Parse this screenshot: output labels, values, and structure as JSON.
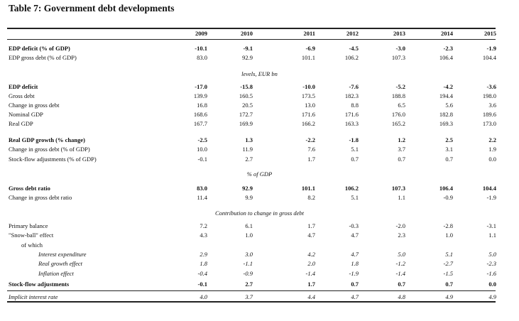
{
  "title": "Table 7: Government debt developments",
  "years": [
    "2009",
    "2010",
    "2011",
    "2012",
    "2013",
    "2014",
    "2015"
  ],
  "sections": {
    "levels": "levels, EUR bn",
    "pct_gdp": "% of GDP",
    "contribution": "Contribution to change in gross debt"
  },
  "rows": [
    {
      "label": "EDP deficit (% of GDP)",
      "values": [
        "-10.1",
        "-9.1",
        "-6.9",
        "-4.5",
        "-3.0",
        "-2.3",
        "-1.9"
      ],
      "style": "bold"
    },
    {
      "label": "EDP gross debt (% of GDP)",
      "values": [
        "83.0",
        "92.9",
        "101.1",
        "106.2",
        "107.3",
        "106.4",
        "104.4"
      ],
      "style": ""
    },
    {
      "label": "EDP deficit",
      "values": [
        "-17.0",
        "-15.8",
        "-10.0",
        "-7.6",
        "-5.2",
        "-4.2",
        "-3.6"
      ],
      "style": "bold"
    },
    {
      "label": "Gross debt",
      "values": [
        "139.9",
        "160.5",
        "173.5",
        "182.3",
        "188.8",
        "194.4",
        "198.0"
      ],
      "style": ""
    },
    {
      "label": "Change in gross debt",
      "values": [
        "16.8",
        "20.5",
        "13.0",
        "8.8",
        "6.5",
        "5.6",
        "3.6"
      ],
      "style": ""
    },
    {
      "label": "Nominal GDP",
      "values": [
        "168.6",
        "172.7",
        "171.6",
        "171.6",
        "176.0",
        "182.8",
        "189.6"
      ],
      "style": ""
    },
    {
      "label": "Real GDP",
      "values": [
        "167.7",
        "169.9",
        "166.2",
        "163.3",
        "165.2",
        "169.3",
        "173.0"
      ],
      "style": ""
    },
    {
      "label": "Real GDP growth (% change)",
      "values": [
        "-2.5",
        "1.3",
        "-2.2",
        "-1.8",
        "1.2",
        "2.5",
        "2.2"
      ],
      "style": "bold"
    },
    {
      "label": "Change in gross debt (% of GDP)",
      "values": [
        "10.0",
        "11.9",
        "7.6",
        "5.1",
        "3.7",
        "3.1",
        "1.9"
      ],
      "style": ""
    },
    {
      "label": "Stock-flow adjustments (% of GDP)",
      "values": [
        "-0.1",
        "2.7",
        "1.7",
        "0.7",
        "0.7",
        "0.7",
        "0.0"
      ],
      "style": ""
    },
    {
      "label": "Gross debt ratio",
      "values": [
        "83.0",
        "92.9",
        "101.1",
        "106.2",
        "107.3",
        "106.4",
        "104.4"
      ],
      "style": "bold"
    },
    {
      "label": "Change in gross debt ratio",
      "values": [
        "11.4",
        "9.9",
        "8.2",
        "5.1",
        "1.1",
        "-0.9",
        "-1.9"
      ],
      "style": ""
    },
    {
      "label": "Primary balance",
      "values": [
        "7.2",
        "6.1",
        "1.7",
        "-0.3",
        "-2.0",
        "-2.8",
        "-3.1"
      ],
      "style": ""
    },
    {
      "label": "\"Snow-ball\" effect",
      "values": [
        "4.3",
        "1.0",
        "4.7",
        "4.7",
        "2.3",
        "1.0",
        "1.1"
      ],
      "style": ""
    },
    {
      "label": "of which",
      "values": [
        "",
        "",
        "",
        "",
        "",
        "",
        ""
      ],
      "style": "ind"
    },
    {
      "label": "Interest expenditure",
      "values": [
        "2.9",
        "3.0",
        "4.2",
        "4.7",
        "5.0",
        "5.1",
        "5.0"
      ],
      "style": "ital ind2"
    },
    {
      "label": "Real growth effect",
      "values": [
        "1.8",
        "-1.1",
        "2.0",
        "1.8",
        "-1.2",
        "-2.7",
        "-2.3"
      ],
      "style": "ital ind2"
    },
    {
      "label": "Inflation effect",
      "values": [
        "-0.4",
        "-0.9",
        "-1.4",
        "-1.9",
        "-1.4",
        "-1.5",
        "-1.6"
      ],
      "style": "ital ind2"
    },
    {
      "label": "Stock-flow adjustments",
      "values": [
        "-0.1",
        "2.7",
        "1.7",
        "0.7",
        "0.7",
        "0.7",
        "0.0"
      ],
      "style": "bold"
    },
    {
      "label": "Implicit interest rate",
      "values": [
        "4.0",
        "3.7",
        "4.4",
        "4.7",
        "4.8",
        "4.9",
        "4.9"
      ],
      "style": "ital"
    }
  ]
}
